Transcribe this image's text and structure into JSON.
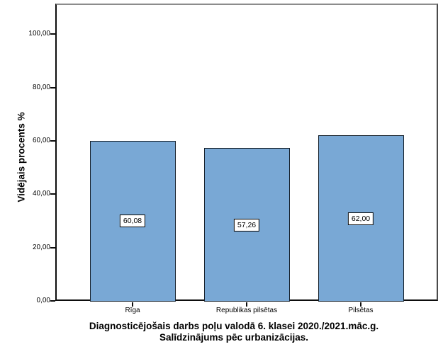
{
  "figure": {
    "title_line1": "Diagnosticējošais darbs poļu valodā 6. klasei 2020./2021.māc.g.",
    "title_line2": "Salīdzinājums pēc urbanizācijas."
  },
  "chart_data": {
    "type": "bar",
    "title": "Diagnosticējošais darbs poļu valodā 6. klasei 2020./2021.māc.g. Salīdzinājums pēc urbanizācijas.",
    "ylabel": "Vidējais procents %",
    "xlabel": "",
    "categories": [
      "Rīga",
      "Republikas pilsētas",
      "Pilsētas"
    ],
    "values": [
      60.08,
      57.26,
      62.0
    ],
    "value_labels": [
      "60,08",
      "57,26",
      "62,00"
    ],
    "y_ticks": [
      0,
      20,
      40,
      60,
      80,
      100
    ],
    "y_tick_labels": [
      "0,00",
      "20,00",
      "40,00",
      "60,00",
      "80,00",
      "100,00"
    ],
    "ylim": [
      0,
      111.5
    ],
    "grid": false,
    "legend_position": "none",
    "bar_fill_color": "#79A8D5",
    "bar_border_color": "#17222d",
    "axis_color": "#0d0d0d",
    "plot_top_border_color": "#8c8c8c"
  }
}
